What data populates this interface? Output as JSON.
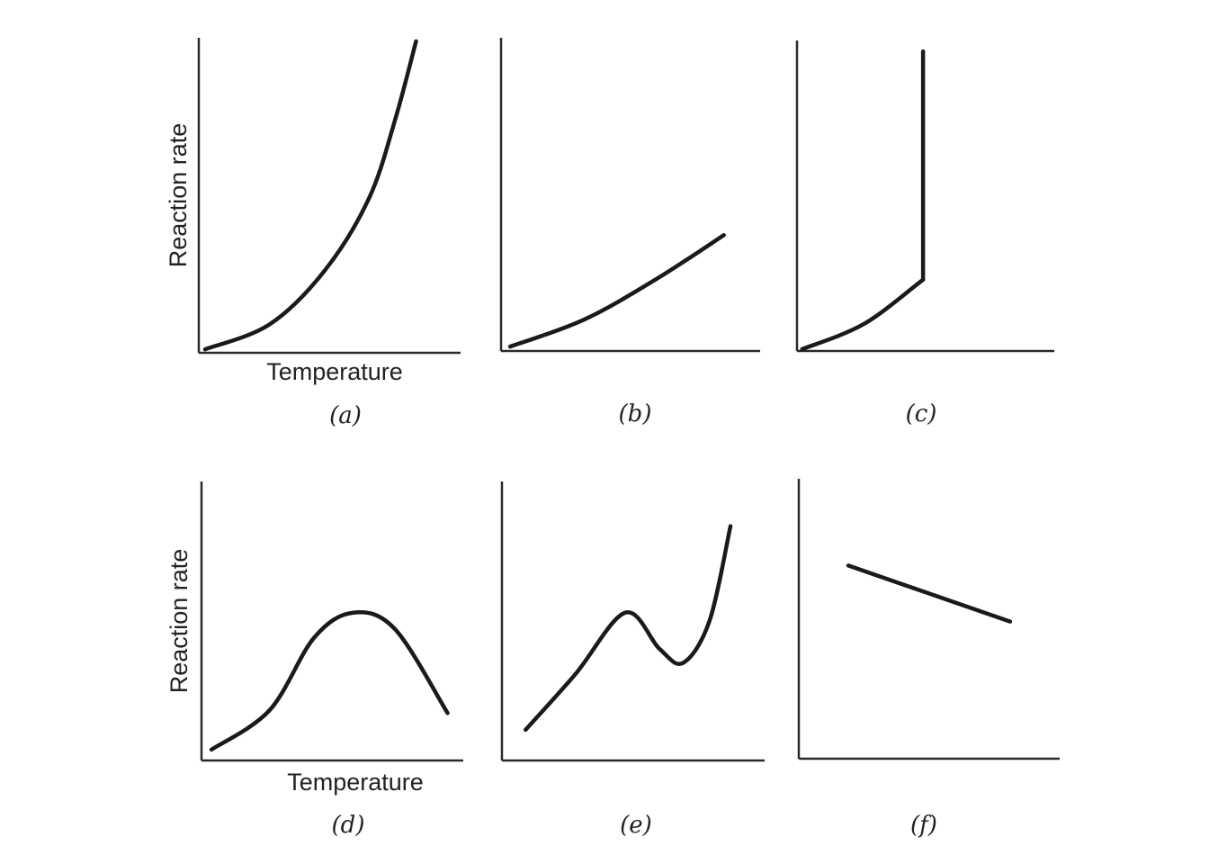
{
  "chart_data": [
    {
      "id": "a",
      "type": "line",
      "panel_label": "(a)",
      "ylabel": "Reaction rate",
      "xlabel": "Temperature",
      "xlim": [
        0,
        100
      ],
      "ylim": [
        0,
        100
      ],
      "grid": false,
      "segments": [
        {
          "smooth": true,
          "points": [
            [
              2.4,
              1.1
            ],
            [
              27,
              9
            ],
            [
              48,
              26
            ],
            [
              65,
              49
            ],
            [
              75,
              74
            ],
            [
              83,
              98.9
            ]
          ]
        }
      ]
    },
    {
      "id": "b",
      "type": "line",
      "panel_label": "(b)",
      "ylabel": "",
      "xlabel": "",
      "xlim": [
        0,
        100
      ],
      "ylim": [
        0,
        100
      ],
      "grid": false,
      "segments": [
        {
          "smooth": true,
          "points": [
            [
              3.5,
              1.4
            ],
            [
              32,
              10
            ],
            [
              60,
              23
            ],
            [
              86,
              37
            ]
          ]
        }
      ]
    },
    {
      "id": "c",
      "type": "line",
      "panel_label": "(c)",
      "ylabel": "",
      "xlabel": "",
      "xlim": [
        0,
        100
      ],
      "ylim": [
        0,
        100
      ],
      "grid": false,
      "segments": [
        {
          "smooth": true,
          "points": [
            [
              2,
              0.6
            ],
            [
              26,
              8.7
            ],
            [
              49,
              23
            ]
          ]
        },
        {
          "smooth": false,
          "points": [
            [
              49,
              23
            ],
            [
              49,
              96.5
            ]
          ]
        }
      ]
    },
    {
      "id": "d",
      "type": "line",
      "panel_label": "(d)",
      "ylabel": "Reaction rate",
      "xlabel": "Temperature",
      "xlim": [
        0,
        100
      ],
      "ylim": [
        0,
        100
      ],
      "grid": false,
      "segments": [
        {
          "smooth": true,
          "points": [
            [
              3.8,
              3.9
            ],
            [
              26,
              18
            ],
            [
              43,
              44
            ],
            [
              58,
              53
            ],
            [
              74,
              47
            ],
            [
              94,
              17
            ]
          ]
        }
      ]
    },
    {
      "id": "e",
      "type": "line",
      "panel_label": "(e)",
      "ylabel": "",
      "xlabel": "",
      "xlim": [
        0,
        100
      ],
      "ylim": [
        0,
        100
      ],
      "grid": false,
      "segments": [
        {
          "smooth": true,
          "points": [
            [
              9,
              11
            ],
            [
              28,
              31
            ],
            [
              47,
              53
            ],
            [
              60,
              40
            ],
            [
              69,
              35
            ],
            [
              79,
              50
            ],
            [
              87,
              84
            ]
          ]
        }
      ]
    },
    {
      "id": "f",
      "type": "line",
      "panel_label": "(f)",
      "ylabel": "",
      "xlabel": "",
      "xlim": [
        0,
        100
      ],
      "ylim": [
        0,
        100
      ],
      "grid": false,
      "segments": [
        {
          "smooth": false,
          "points": [
            [
              19,
              69
            ],
            [
              81,
              49
            ]
          ]
        }
      ]
    }
  ]
}
